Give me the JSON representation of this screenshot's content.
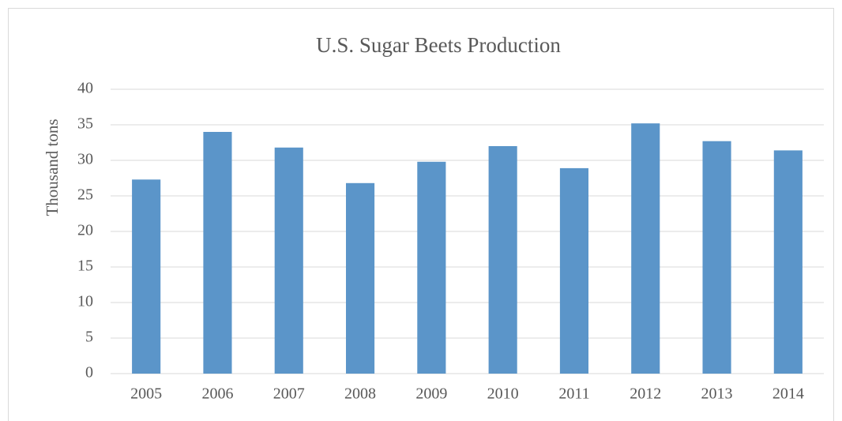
{
  "chart_data": {
    "type": "bar",
    "title": "U.S. Sugar Beets Production",
    "y_label": "Thousand tons",
    "categories": [
      "2005",
      "2006",
      "2007",
      "2008",
      "2009",
      "2010",
      "2011",
      "2012",
      "2013",
      "2014"
    ],
    "values": [
      27.3,
      34.0,
      31.8,
      26.8,
      29.8,
      32.0,
      28.9,
      35.2,
      32.7,
      31.4
    ],
    "color": "#5b95c9",
    "ylim": [
      0,
      40
    ],
    "yticks": [
      0,
      5,
      10,
      15,
      20,
      25,
      30,
      35,
      40
    ],
    "grid": true
  }
}
